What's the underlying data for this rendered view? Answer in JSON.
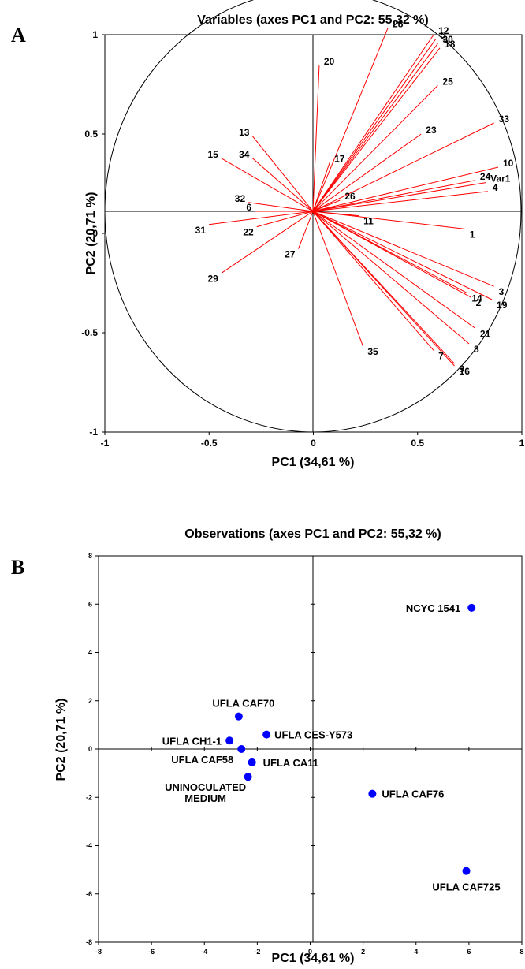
{
  "panels": {
    "a_letter": "A",
    "b_letter": "B"
  },
  "chart_data": [
    {
      "type": "scatter",
      "subtype": "correlation-circle",
      "title": "Variables (axes PC1 and PC2: 55,32 %)",
      "xlabel": "PC1 (34,61 %)",
      "ylabel": "PC2 (20,71 %)",
      "xlim": [
        -1,
        1
      ],
      "ylim": [
        -1,
        1
      ],
      "x_ticks": [
        "-1",
        "-0.5",
        "0",
        "0.5",
        "1"
      ],
      "y_ticks": [
        "-1",
        "-0.5",
        "0",
        "0.5",
        "1"
      ],
      "colors": {
        "vectors": "#ff0000",
        "circle": "#000000"
      },
      "vectors": [
        {
          "label": "1",
          "x": 0.73,
          "y": -0.08
        },
        {
          "label": "2",
          "x": 0.76,
          "y": -0.39
        },
        {
          "label": "3",
          "x": 0.87,
          "y": -0.34
        },
        {
          "label": "4",
          "x": 0.84,
          "y": 0.09
        },
        {
          "label": "5",
          "x": 0.59,
          "y": 0.78
        },
        {
          "label": "6",
          "x": -0.28,
          "y": 0.0
        },
        {
          "label": "7",
          "x": 0.58,
          "y": -0.63
        },
        {
          "label": "8",
          "x": 0.75,
          "y": -0.6
        },
        {
          "label": "9",
          "x": 0.68,
          "y": -0.69
        },
        {
          "label": "10",
          "x": 0.89,
          "y": 0.2
        },
        {
          "label": "11",
          "x": 0.22,
          "y": -0.02
        },
        {
          "label": "12",
          "x": 0.58,
          "y": 0.8
        },
        {
          "label": "13",
          "x": -0.29,
          "y": 0.34
        },
        {
          "label": "14",
          "x": 0.74,
          "y": -0.37
        },
        {
          "label": "15",
          "x": -0.44,
          "y": 0.24
        },
        {
          "label": "16",
          "x": 0.68,
          "y": -0.7
        },
        {
          "label": "17",
          "x": 0.08,
          "y": 0.22
        },
        {
          "label": "18",
          "x": 0.61,
          "y": 0.74
        },
        {
          "label": "19",
          "x": 0.86,
          "y": -0.4
        },
        {
          "label": "20",
          "x": 0.03,
          "y": 0.66
        },
        {
          "label": "21",
          "x": 0.78,
          "y": -0.53
        },
        {
          "label": "22",
          "x": -0.27,
          "y": -0.07
        },
        {
          "label": "23",
          "x": 0.52,
          "y": 0.35
        },
        {
          "label": "24",
          "x": 0.78,
          "y": 0.14
        },
        {
          "label": "25",
          "x": 0.6,
          "y": 0.57
        },
        {
          "label": "26",
          "x": 0.13,
          "y": 0.05
        },
        {
          "label": "27",
          "x": -0.07,
          "y": -0.17
        },
        {
          "label": "28",
          "x": 0.36,
          "y": 0.83
        },
        {
          "label": "29",
          "x": -0.44,
          "y": -0.28
        },
        {
          "label": "30",
          "x": 0.6,
          "y": 0.76
        },
        {
          "label": "31",
          "x": -0.5,
          "y": -0.06
        },
        {
          "label": "32",
          "x": -0.31,
          "y": 0.04
        },
        {
          "label": "33",
          "x": 0.87,
          "y": 0.4
        },
        {
          "label": "34",
          "x": -0.29,
          "y": 0.24
        },
        {
          "label": "35",
          "x": 0.24,
          "y": -0.61
        },
        {
          "label": "Var1",
          "x": 0.83,
          "y": 0.13
        }
      ]
    },
    {
      "type": "scatter",
      "title": "Observations (axes PC1 and PC2: 55,32 %)",
      "xlabel": "PC1 (34,61 %)",
      "ylabel": "PC2 (20,71 %)",
      "xlim": [
        -8,
        8
      ],
      "ylim": [
        -8,
        8
      ],
      "x_ticks": [
        "-8",
        "-6",
        "-4",
        "-2",
        "0",
        "2",
        "4",
        "6",
        "8"
      ],
      "y_ticks": [
        "-8",
        "-6",
        "-4",
        "-2",
        "0",
        "2",
        "4",
        "6",
        "8"
      ],
      "colors": {
        "points": "#0000ff"
      },
      "points": [
        {
          "label": "NCYC 1541",
          "x": 6.1,
          "y": 5.85
        },
        {
          "label": "UFLA CAF70",
          "x": -2.7,
          "y": 1.35
        },
        {
          "label": "UFLA CH1-1",
          "x": -3.05,
          "y": 0.35
        },
        {
          "label": "UFLA CES-Y573",
          "x": -1.65,
          "y": 0.6
        },
        {
          "label": "UFLA CAF58",
          "x": -2.6,
          "y": 0.0
        },
        {
          "label": "UFLA CA11",
          "x": -2.2,
          "y": -0.55
        },
        {
          "label": "UNINOCULATED MEDIUM",
          "x": -2.35,
          "y": -1.15
        },
        {
          "label": "UFLA CAF76",
          "x": 2.35,
          "y": -1.85
        },
        {
          "label": "UFLA CAF725",
          "x": 5.9,
          "y": -5.05
        }
      ]
    }
  ]
}
